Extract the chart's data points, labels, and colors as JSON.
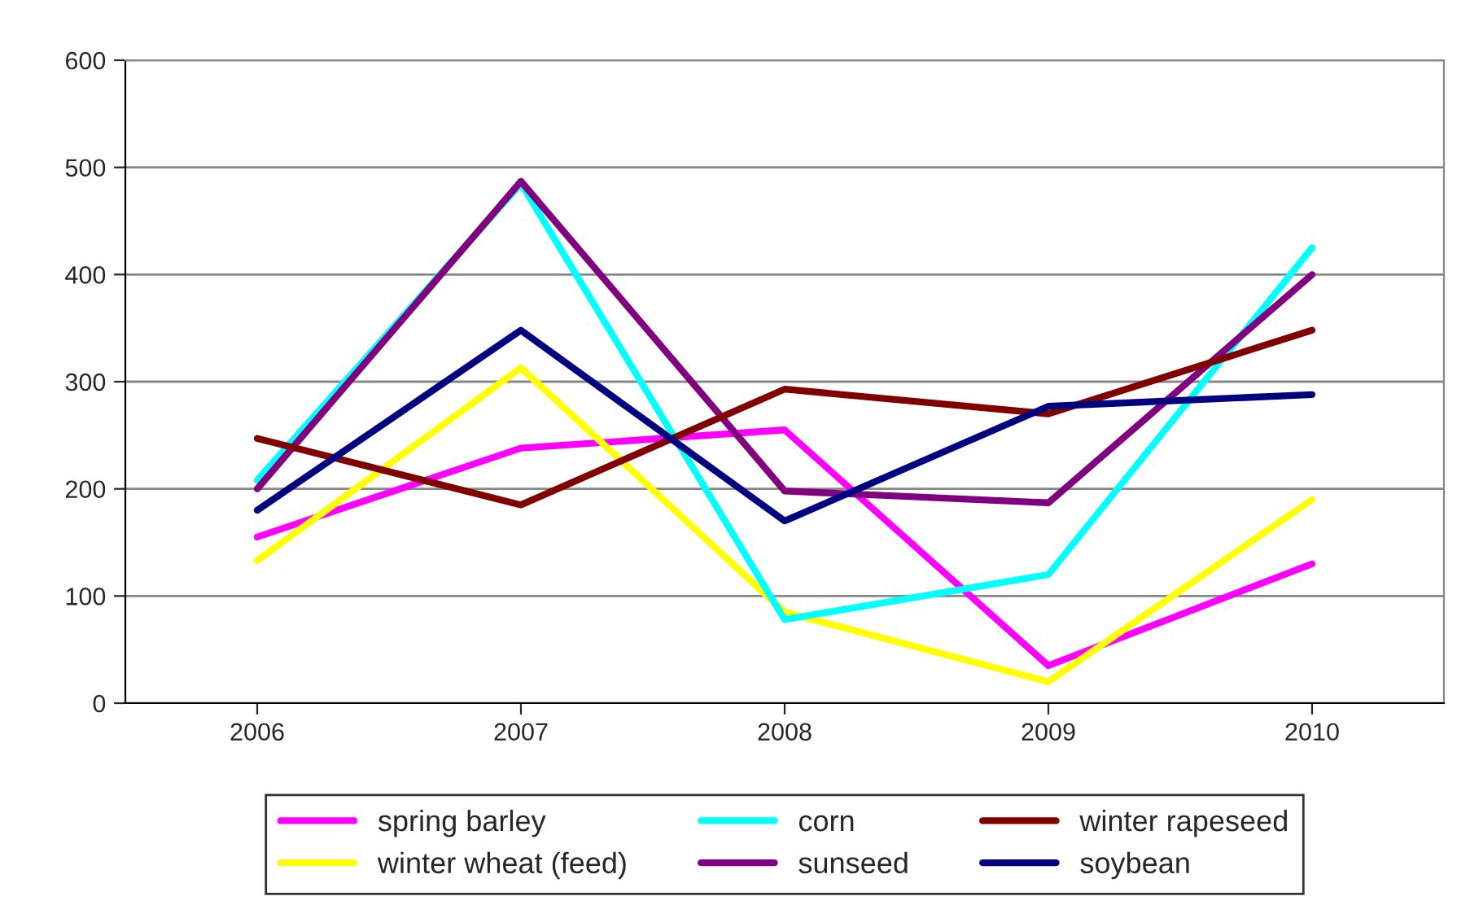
{
  "chart_data": {
    "type": "line",
    "categories": [
      "2006",
      "2007",
      "2008",
      "2009",
      "2010"
    ],
    "series": [
      {
        "name": "spring barley",
        "color": "#ff00ff",
        "values": [
          155,
          238,
          255,
          35,
          130
        ]
      },
      {
        "name": "winter wheat (feed)",
        "color": "#ffff00",
        "values": [
          133,
          313,
          85,
          20,
          190
        ]
      },
      {
        "name": "corn",
        "color": "#00ffff",
        "values": [
          208,
          485,
          78,
          120,
          425
        ]
      },
      {
        "name": "sunseed",
        "color": "#800080",
        "values": [
          200,
          487,
          198,
          187,
          400
        ]
      },
      {
        "name": "winter rapeseed",
        "color": "#800000",
        "values": [
          247,
          185,
          293,
          270,
          348
        ]
      },
      {
        "name": "soybean",
        "color": "#000080",
        "values": [
          180,
          348,
          170,
          277,
          288
        ]
      }
    ],
    "ylim": [
      0,
      600
    ],
    "yticks": [
      0,
      100,
      200,
      300,
      400,
      500,
      600
    ],
    "grid": "y",
    "legend": "bottom",
    "marker": "none",
    "line_style": "solid"
  }
}
